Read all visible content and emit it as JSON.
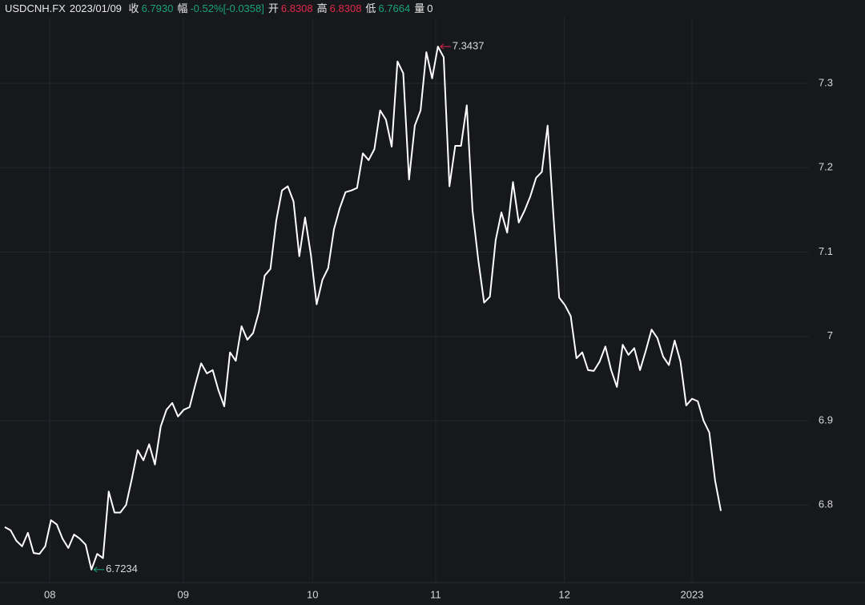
{
  "header": {
    "symbol": "USDCNH.FX",
    "date": "2023/01/09",
    "fields": [
      {
        "label": "收",
        "value": "6.7930",
        "tone": "down"
      },
      {
        "label": "幅",
        "value": "-0.52%[-0.0358]",
        "tone": "down"
      },
      {
        "label": "开",
        "value": "6.8308",
        "tone": "up"
      },
      {
        "label": "高",
        "value": "6.8308",
        "tone": "up"
      },
      {
        "label": "低",
        "value": "6.7664",
        "tone": "down"
      },
      {
        "label": "量",
        "value": "0",
        "tone": "plain"
      }
    ]
  },
  "chart_data": {
    "type": "line",
    "color": "#ffffff",
    "grid": true,
    "high_color": "#e0294a",
    "low_color": "#1aa37a",
    "values": [
      6.7738,
      6.77,
      6.7576,
      6.751,
      6.767,
      6.743,
      6.742,
      6.751,
      6.782,
      6.777,
      6.76,
      6.749,
      6.765,
      6.76,
      6.753,
      6.7234,
      6.742,
      6.737,
      6.816,
      6.791,
      6.791,
      6.8,
      6.831,
      6.865,
      6.853,
      6.872,
      6.848,
      6.893,
      6.913,
      6.921,
      6.905,
      6.913,
      6.916,
      6.943,
      6.968,
      6.956,
      6.96,
      6.936,
      6.917,
      6.981,
      6.971,
      7.012,
      6.996,
      7.004,
      7.029,
      7.072,
      7.08,
      7.137,
      7.173,
      7.178,
      7.16,
      7.095,
      7.141,
      7.097,
      7.038,
      7.067,
      7.081,
      7.127,
      7.152,
      7.171,
      7.173,
      7.176,
      7.217,
      7.209,
      7.222,
      7.268,
      7.257,
      7.225,
      7.326,
      7.312,
      7.186,
      7.25,
      7.268,
      7.337,
      7.306,
      7.3437,
      7.331,
      7.178,
      7.226,
      7.226,
      7.274,
      7.149,
      7.09,
      7.04,
      7.047,
      7.114,
      7.147,
      7.123,
      7.183,
      7.135,
      7.149,
      7.166,
      7.188,
      7.195,
      7.25,
      7.144,
      7.046,
      7.037,
      7.024,
      6.974,
      6.981,
      6.96,
      6.959,
      6.97,
      6.988,
      6.96,
      6.94,
      6.99,
      6.978,
      6.986,
      6.96,
      6.983,
      7.008,
      6.998,
      6.976,
      6.966,
      6.995,
      6.97,
      6.918,
      6.926,
      6.923,
      6.9,
      6.886,
      6.829,
      6.793
    ],
    "xlim": [
      -0.83,
      139.25
    ],
    "xticks": [
      {
        "value": 7.8,
        "label": "08"
      },
      {
        "value": 30.9,
        "label": "09"
      },
      {
        "value": 53.3,
        "label": "10"
      },
      {
        "value": 74.6,
        "label": "11"
      },
      {
        "value": 96.9,
        "label": "12"
      },
      {
        "value": 119,
        "label": "2023",
        "color": "#f5a623"
      }
    ],
    "ylim": [
      6.708,
      7.378
    ],
    "yticks": [
      6.8,
      6.9,
      7,
      7.1,
      7.2,
      7.3
    ]
  }
}
